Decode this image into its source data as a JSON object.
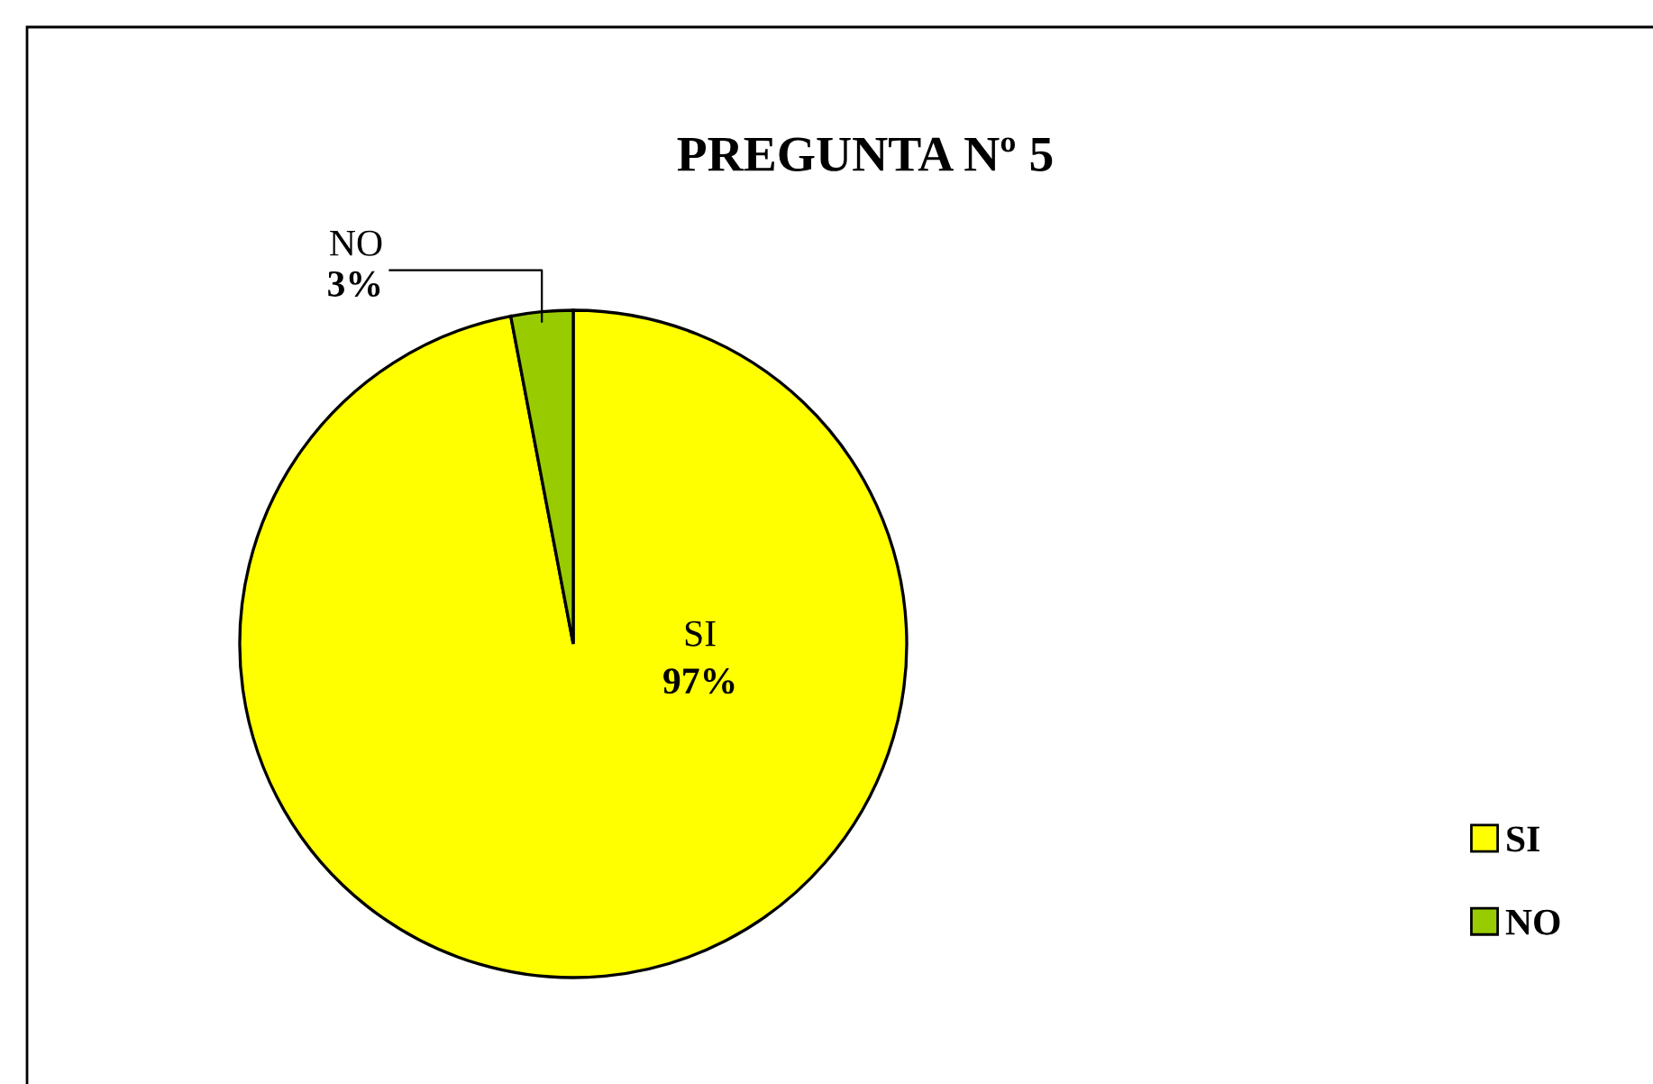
{
  "chart_data": {
    "type": "pie",
    "title": "PREGUNTA Nº 5",
    "categories": [
      "SI",
      "NO"
    ],
    "values": [
      97,
      3
    ],
    "colors": [
      "#ffff00",
      "#99cc00"
    ],
    "value_labels": [
      "97%",
      "3%"
    ],
    "legend": "right"
  }
}
